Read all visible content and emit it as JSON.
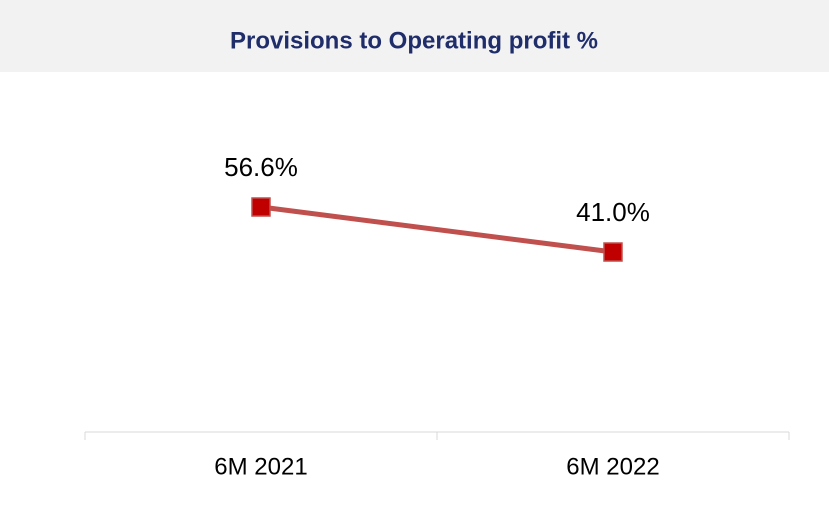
{
  "chart_data": {
    "type": "line",
    "title": "Provisions to Operating profit %",
    "categories": [
      "6M 2021",
      "6M 2022"
    ],
    "values": [
      56.6,
      41.0
    ],
    "value_labels": [
      "56.6%",
      "41.0%"
    ],
    "color": "#c0504d",
    "marker_color": "#c00000",
    "ylim": [
      -20,
      80
    ]
  }
}
